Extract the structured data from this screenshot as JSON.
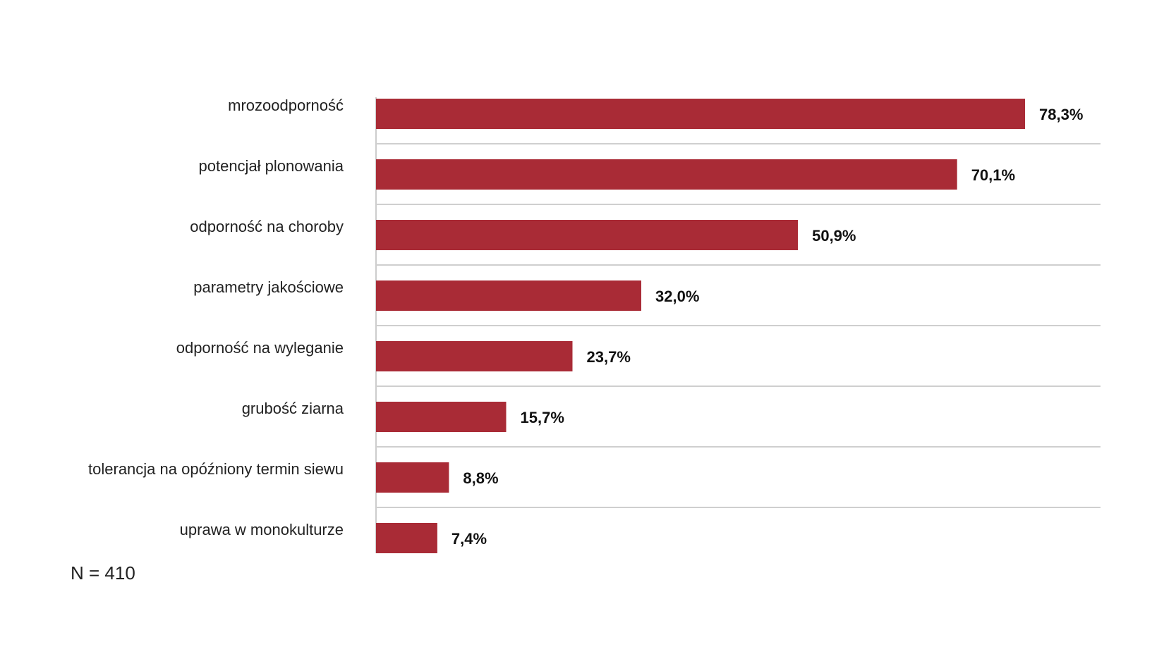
{
  "chart_data": {
    "type": "bar",
    "orientation": "horizontal",
    "categories": [
      "mrozoodporność",
      "potencjał plonowania",
      "odporność na choroby",
      "parametry jakościowe",
      "odporność na wyleganie",
      "grubość ziarna",
      "tolerancja na opóźniony termin siewu",
      "uprawa w monokulturze"
    ],
    "values": [
      78.3,
      70.1,
      50.9,
      32.0,
      23.7,
      15.7,
      8.8,
      7.4
    ],
    "value_labels": [
      "78,3%",
      "70,1%",
      "50,9%",
      "32,0%",
      "23,7%",
      "15,7%",
      "8,8%",
      "7,4%"
    ],
    "xlim": [
      0,
      87
    ],
    "grid": "horizontal separators",
    "bar_color": "#a92b36",
    "note": "N = 410"
  }
}
